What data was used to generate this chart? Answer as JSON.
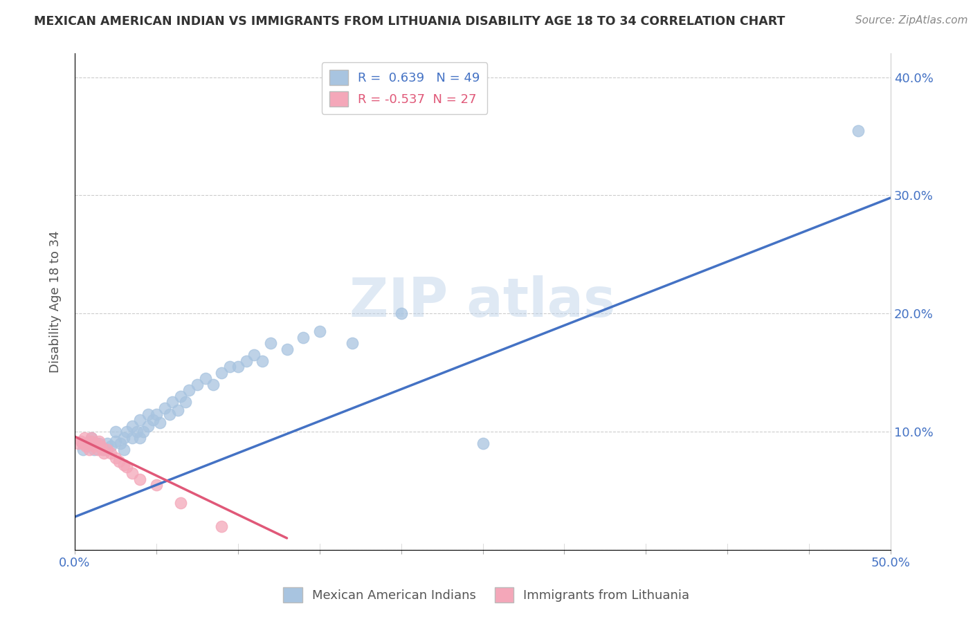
{
  "title": "MEXICAN AMERICAN INDIAN VS IMMIGRANTS FROM LITHUANIA DISABILITY AGE 18 TO 34 CORRELATION CHART",
  "source": "Source: ZipAtlas.com",
  "xlabel": "",
  "ylabel": "Disability Age 18 to 34",
  "xlim": [
    0.0,
    0.5
  ],
  "ylim": [
    0.0,
    0.42
  ],
  "xticks": [
    0.0,
    0.05,
    0.1,
    0.15,
    0.2,
    0.25,
    0.3,
    0.35,
    0.4,
    0.45,
    0.5
  ],
  "yticks": [
    0.0,
    0.1,
    0.2,
    0.3,
    0.4
  ],
  "blue_R": 0.639,
  "blue_N": 49,
  "pink_R": -0.537,
  "pink_N": 27,
  "blue_color": "#a8c4e0",
  "pink_color": "#f4a7b9",
  "blue_line_color": "#4472c4",
  "pink_line_color": "#e05878",
  "blue_scatter_x": [
    0.005,
    0.008,
    0.01,
    0.012,
    0.015,
    0.018,
    0.02,
    0.022,
    0.025,
    0.025,
    0.028,
    0.03,
    0.03,
    0.032,
    0.035,
    0.035,
    0.038,
    0.04,
    0.04,
    0.042,
    0.045,
    0.045,
    0.048,
    0.05,
    0.052,
    0.055,
    0.058,
    0.06,
    0.063,
    0.065,
    0.068,
    0.07,
    0.075,
    0.08,
    0.085,
    0.09,
    0.095,
    0.1,
    0.105,
    0.11,
    0.115,
    0.12,
    0.13,
    0.14,
    0.15,
    0.17,
    0.2,
    0.25,
    0.48
  ],
  "blue_scatter_y": [
    0.085,
    0.09,
    0.095,
    0.085,
    0.09,
    0.085,
    0.09,
    0.088,
    0.092,
    0.1,
    0.09,
    0.095,
    0.085,
    0.1,
    0.095,
    0.105,
    0.1,
    0.095,
    0.11,
    0.1,
    0.105,
    0.115,
    0.11,
    0.115,
    0.108,
    0.12,
    0.115,
    0.125,
    0.118,
    0.13,
    0.125,
    0.135,
    0.14,
    0.145,
    0.14,
    0.15,
    0.155,
    0.155,
    0.16,
    0.165,
    0.16,
    0.175,
    0.17,
    0.18,
    0.185,
    0.175,
    0.2,
    0.09,
    0.355
  ],
  "pink_scatter_x": [
    0.002,
    0.004,
    0.005,
    0.006,
    0.007,
    0.008,
    0.009,
    0.01,
    0.01,
    0.012,
    0.013,
    0.014,
    0.015,
    0.016,
    0.017,
    0.018,
    0.02,
    0.022,
    0.025,
    0.027,
    0.03,
    0.032,
    0.035,
    0.04,
    0.05,
    0.065,
    0.09
  ],
  "pink_scatter_y": [
    0.09,
    0.092,
    0.09,
    0.095,
    0.088,
    0.09,
    0.085,
    0.095,
    0.092,
    0.088,
    0.09,
    0.085,
    0.092,
    0.088,
    0.085,
    0.082,
    0.085,
    0.082,
    0.078,
    0.075,
    0.072,
    0.07,
    0.065,
    0.06,
    0.055,
    0.04,
    0.02
  ],
  "blue_line_x": [
    0.0,
    0.5
  ],
  "blue_line_y": [
    0.028,
    0.298
  ],
  "pink_line_x": [
    0.0,
    0.13
  ],
  "pink_line_y": [
    0.096,
    0.01
  ],
  "figsize": [
    14.06,
    8.92
  ],
  "dpi": 100
}
